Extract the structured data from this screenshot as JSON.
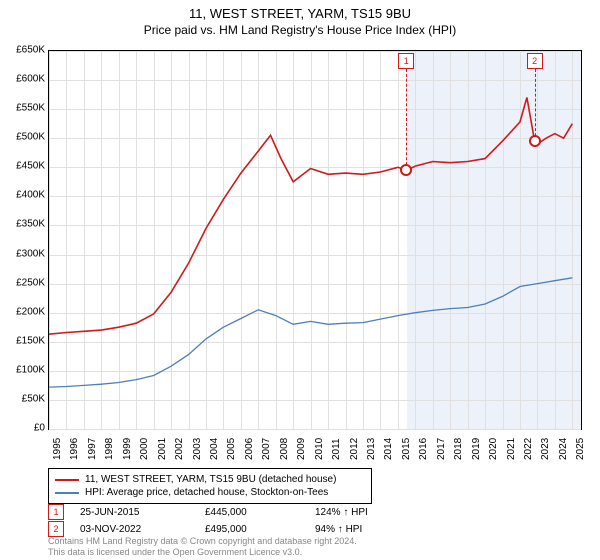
{
  "title": "11, WEST STREET, YARM, TS15 9BU",
  "subtitle": "Price paid vs. HM Land Registry's House Price Index (HPI)",
  "chart": {
    "type": "line",
    "background_color": "#ffffff",
    "grid_color": "#e0e0e0",
    "ylim": [
      0,
      650000
    ],
    "ytick_step": 50000,
    "ytick_labels": [
      "£0",
      "£50K",
      "£100K",
      "£150K",
      "£200K",
      "£250K",
      "£300K",
      "£350K",
      "£400K",
      "£450K",
      "£500K",
      "£550K",
      "£600K",
      "£650K"
    ],
    "xlim": [
      1995,
      2025.5
    ],
    "xticks": [
      1995,
      1996,
      1997,
      1998,
      1999,
      2000,
      2001,
      2002,
      2003,
      2004,
      2005,
      2006,
      2007,
      2008,
      2009,
      2010,
      2011,
      2012,
      2013,
      2014,
      2015,
      2016,
      2017,
      2018,
      2019,
      2020,
      2021,
      2022,
      2023,
      2024,
      2025
    ],
    "shade_from": 2015.5,
    "series": [
      {
        "name": "property",
        "label": "11, WEST STREET, YARM, TS15 9BU (detached house)",
        "color": "#d11919",
        "width": 1.6,
        "points": [
          [
            1995,
            163000
          ],
          [
            1996,
            166000
          ],
          [
            1997,
            168000
          ],
          [
            1998,
            170000
          ],
          [
            1999,
            175000
          ],
          [
            2000,
            182000
          ],
          [
            2001,
            198000
          ],
          [
            2002,
            235000
          ],
          [
            2003,
            285000
          ],
          [
            2004,
            345000
          ],
          [
            2005,
            395000
          ],
          [
            2006,
            440000
          ],
          [
            2007,
            478000
          ],
          [
            2007.7,
            505000
          ],
          [
            2008.3,
            465000
          ],
          [
            2009,
            425000
          ],
          [
            2010,
            448000
          ],
          [
            2011,
            438000
          ],
          [
            2012,
            440000
          ],
          [
            2013,
            438000
          ],
          [
            2014,
            442000
          ],
          [
            2015,
            450000
          ],
          [
            2015.5,
            445000
          ],
          [
            2016,
            452000
          ],
          [
            2017,
            460000
          ],
          [
            2018,
            458000
          ],
          [
            2019,
            460000
          ],
          [
            2020,
            465000
          ],
          [
            2021,
            495000
          ],
          [
            2022,
            528000
          ],
          [
            2022.4,
            570000
          ],
          [
            2022.84,
            495000
          ],
          [
            2023,
            490000
          ],
          [
            2023.5,
            500000
          ],
          [
            2024,
            508000
          ],
          [
            2024.5,
            500000
          ],
          [
            2025,
            525000
          ]
        ]
      },
      {
        "name": "hpi",
        "label": "HPI: Average price, detached house, Stockton-on-Tees",
        "color": "#4f7fb8",
        "width": 1.3,
        "points": [
          [
            1995,
            72000
          ],
          [
            1996,
            73000
          ],
          [
            1997,
            75000
          ],
          [
            1998,
            77000
          ],
          [
            1999,
            80000
          ],
          [
            2000,
            85000
          ],
          [
            2001,
            92000
          ],
          [
            2002,
            108000
          ],
          [
            2003,
            128000
          ],
          [
            2004,
            155000
          ],
          [
            2005,
            175000
          ],
          [
            2006,
            190000
          ],
          [
            2007,
            205000
          ],
          [
            2008,
            195000
          ],
          [
            2009,
            180000
          ],
          [
            2010,
            185000
          ],
          [
            2011,
            180000
          ],
          [
            2012,
            182000
          ],
          [
            2013,
            183000
          ],
          [
            2014,
            189000
          ],
          [
            2015,
            195000
          ],
          [
            2016,
            200000
          ],
          [
            2017,
            204000
          ],
          [
            2018,
            207000
          ],
          [
            2019,
            209000
          ],
          [
            2020,
            215000
          ],
          [
            2021,
            228000
          ],
          [
            2022,
            245000
          ],
          [
            2023,
            250000
          ],
          [
            2024,
            255000
          ],
          [
            2025,
            260000
          ]
        ]
      }
    ],
    "markers": [
      {
        "num": "1",
        "x": 2015.48,
        "y": 445000,
        "color": "#d11919"
      },
      {
        "num": "2",
        "x": 2022.84,
        "y": 495000,
        "color": "#d11919"
      }
    ]
  },
  "sales": [
    {
      "num": "1",
      "date": "25-JUN-2015",
      "price": "£445,000",
      "pct": "124% ↑ HPI",
      "color": "#d11919"
    },
    {
      "num": "2",
      "date": "03-NOV-2022",
      "price": "£495,000",
      "pct": "94% ↑ HPI",
      "color": "#d11919"
    }
  ],
  "footer_line1": "Contains HM Land Registry data © Crown copyright and database right 2024.",
  "footer_line2": "This data is licensed under the Open Government Licence v3.0."
}
